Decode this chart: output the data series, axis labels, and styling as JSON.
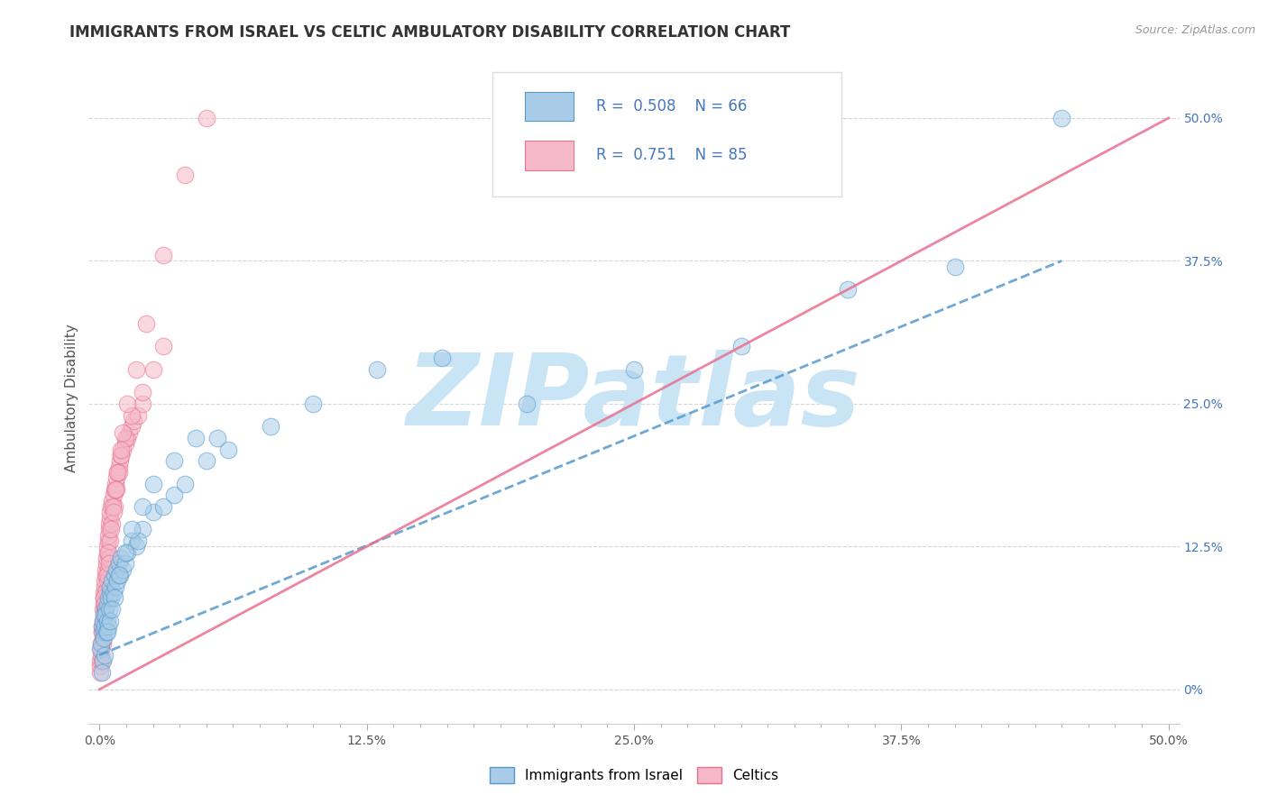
{
  "title": "IMMIGRANTS FROM ISRAEL VS CELTIC AMBULATORY DISABILITY CORRELATION CHART",
  "source_text": "Source: ZipAtlas.com",
  "ylabel": "Ambulatory Disability",
  "x_tick_labels": [
    "0.0%",
    "",
    "",
    "",
    "",
    "12.5%",
    "",
    "",
    "",
    "",
    "25.0%",
    "",
    "",
    "",
    "",
    "37.5%",
    "",
    "",
    "",
    "",
    "50.0%"
  ],
  "x_ticks": [
    0,
    2.5,
    5,
    7.5,
    10,
    12.5,
    15,
    17.5,
    20,
    22.5,
    25,
    27.5,
    30,
    32.5,
    35,
    37.5,
    40,
    42.5,
    45,
    47.5,
    50
  ],
  "x_tick_labels_show": [
    "0.0%",
    "12.5%",
    "25.0%",
    "37.5%",
    "50.0%"
  ],
  "x_ticks_show": [
    0,
    12.5,
    25.0,
    37.5,
    50.0
  ],
  "y_tick_labels_right": [
    "0%",
    "12.5%",
    "25.0%",
    "37.5%",
    "50.0%"
  ],
  "y_ticks": [
    0.0,
    12.5,
    25.0,
    37.5,
    50.0
  ],
  "xlim": [
    -0.5,
    50.5
  ],
  "ylim": [
    -3,
    54
  ],
  "legend_labels": [
    "Immigrants from Israel",
    "Celtics"
  ],
  "legend_R": [
    "0.508",
    "0.751"
  ],
  "legend_N": [
    "66",
    "85"
  ],
  "israel_color": "#a8cce8",
  "celtics_color": "#f5b8c8",
  "israel_edge_color": "#5599cc",
  "celtics_edge_color": "#e87090",
  "israel_line_color": "#5599cc",
  "celtics_line_color": "#e87090",
  "israel_line_dash": true,
  "background_color": "#ffffff",
  "grid_color": "#cccccc",
  "title_color": "#333333",
  "watermark_text": "ZIPatlas",
  "watermark_color": "#c8e4f5",
  "right_label_color": "#4477bb",
  "israel_scatter_x": [
    0.05,
    0.08,
    0.12,
    0.15,
    0.18,
    0.2,
    0.22,
    0.25,
    0.28,
    0.3,
    0.32,
    0.35,
    0.38,
    0.4,
    0.42,
    0.45,
    0.48,
    0.5,
    0.55,
    0.6,
    0.65,
    0.7,
    0.75,
    0.8,
    0.85,
    0.9,
    0.95,
    1.0,
    1.1,
    1.2,
    1.3,
    1.5,
    1.7,
    2.0,
    2.5,
    3.0,
    3.5,
    4.0,
    5.0,
    6.0,
    8.0,
    10.0,
    13.0,
    16.0,
    20.0,
    25.0,
    30.0,
    35.0,
    40.0,
    45.0,
    1.8,
    0.15,
    0.25,
    0.35,
    0.5,
    0.7,
    0.9,
    1.2,
    1.5,
    2.0,
    2.5,
    3.5,
    4.5,
    0.1,
    0.6,
    5.5
  ],
  "israel_scatter_y": [
    3.5,
    4.0,
    5.5,
    6.0,
    5.0,
    4.5,
    6.5,
    5.5,
    7.0,
    6.5,
    5.0,
    7.5,
    6.0,
    8.0,
    5.5,
    7.0,
    8.5,
    9.0,
    8.0,
    9.5,
    8.5,
    10.0,
    9.0,
    10.5,
    9.5,
    11.0,
    10.0,
    11.5,
    10.5,
    11.0,
    12.0,
    13.0,
    12.5,
    14.0,
    15.5,
    16.0,
    17.0,
    18.0,
    20.0,
    21.0,
    23.0,
    25.0,
    28.0,
    29.0,
    25.0,
    28.0,
    30.0,
    35.0,
    37.0,
    50.0,
    13.0,
    2.5,
    3.0,
    5.0,
    6.0,
    8.0,
    10.0,
    12.0,
    14.0,
    16.0,
    18.0,
    20.0,
    22.0,
    1.5,
    7.0,
    22.0
  ],
  "celtics_scatter_x": [
    0.02,
    0.04,
    0.06,
    0.08,
    0.1,
    0.12,
    0.14,
    0.16,
    0.18,
    0.2,
    0.22,
    0.24,
    0.26,
    0.28,
    0.3,
    0.32,
    0.34,
    0.36,
    0.38,
    0.4,
    0.42,
    0.44,
    0.46,
    0.48,
    0.5,
    0.55,
    0.6,
    0.65,
    0.7,
    0.75,
    0.8,
    0.85,
    0.9,
    0.95,
    1.0,
    1.1,
    1.2,
    1.3,
    1.4,
    1.5,
    1.6,
    1.8,
    2.0,
    0.05,
    0.1,
    0.15,
    0.2,
    0.25,
    0.3,
    0.35,
    0.4,
    0.45,
    0.5,
    0.6,
    0.7,
    0.8,
    0.9,
    1.0,
    1.2,
    1.5,
    2.0,
    2.5,
    3.0,
    0.08,
    0.18,
    0.35,
    0.55,
    0.75,
    1.0,
    0.12,
    0.22,
    0.42,
    0.62,
    0.15,
    0.25,
    0.45,
    0.65,
    0.85,
    1.1,
    1.3,
    1.7,
    2.2,
    3.0,
    4.0,
    5.0
  ],
  "celtics_scatter_y": [
    2.0,
    2.5,
    3.0,
    4.0,
    5.0,
    5.5,
    6.0,
    7.0,
    7.5,
    8.0,
    8.5,
    9.0,
    9.5,
    10.0,
    10.5,
    11.0,
    11.5,
    12.0,
    12.5,
    13.0,
    13.5,
    14.0,
    14.5,
    15.0,
    15.5,
    16.0,
    16.5,
    17.0,
    17.5,
    18.0,
    18.5,
    19.0,
    19.5,
    20.0,
    20.5,
    21.0,
    21.5,
    22.0,
    22.5,
    23.0,
    23.5,
    24.0,
    25.0,
    1.5,
    2.5,
    4.0,
    5.5,
    7.0,
    8.5,
    9.5,
    10.5,
    11.5,
    13.0,
    14.5,
    16.0,
    17.5,
    19.0,
    20.5,
    22.0,
    24.0,
    26.0,
    28.0,
    30.0,
    3.5,
    6.5,
    10.0,
    14.0,
    17.5,
    21.0,
    5.0,
    8.0,
    12.0,
    16.0,
    4.5,
    7.5,
    11.0,
    15.5,
    19.0,
    22.5,
    25.0,
    28.0,
    32.0,
    38.0,
    45.0,
    50.0
  ],
  "israel_line_x0": 0,
  "israel_line_y0": 3.0,
  "israel_line_x1": 45.0,
  "israel_line_y1": 37.5,
  "celtics_line_x0": 0,
  "celtics_line_y0": 0,
  "celtics_line_x1": 50,
  "celtics_line_y1": 50
}
